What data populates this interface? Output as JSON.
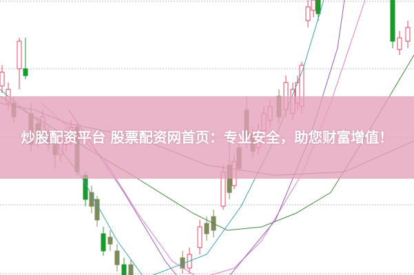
{
  "title": "炒股配资平台 股票配资网首页：专业安全，助您财富增值！",
  "colors": {
    "banner": "#e4a0b9",
    "up_candle": "#e0405f",
    "down_candle": "#7d8a5a",
    "down_candle_strong": "#1a9a2a",
    "ma_long": "#7a6e8a",
    "ma_green": "#3f8a3a",
    "ma_pink": "#e07ad0",
    "ma_teal": "#3aa0b0",
    "ma_purple": "#9a5ab0"
  }
}
